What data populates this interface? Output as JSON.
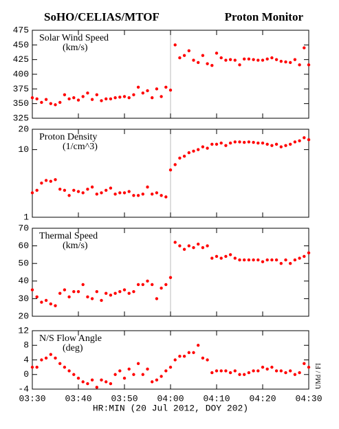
{
  "header": {
    "left": "SoHO/CELIAS/MTOF",
    "right": "Proton Monitor"
  },
  "side_note": "UMd / FI",
  "chart_data": [
    {
      "type": "scatter",
      "title": "Solar Wind Speed",
      "unit": "(km/s)",
      "color": "#ff0000",
      "x": [
        0,
        1,
        2,
        3,
        4,
        5,
        6,
        7,
        8,
        9,
        10,
        11,
        12,
        13,
        14,
        15,
        16,
        17,
        18,
        19,
        20,
        21,
        22,
        23,
        24,
        25,
        26,
        27,
        28,
        29,
        30,
        31,
        32,
        33,
        34,
        35,
        36,
        37,
        38,
        39,
        40,
        41,
        42,
        43,
        44,
        45,
        46,
        47,
        48,
        49,
        50,
        51,
        52,
        53,
        54,
        55,
        56,
        57,
        58,
        59,
        60
      ],
      "values": [
        360,
        358,
        352,
        357,
        350,
        348,
        352,
        365,
        358,
        360,
        356,
        362,
        368,
        357,
        365,
        355,
        358,
        358,
        360,
        361,
        362,
        360,
        365,
        378,
        368,
        372,
        360,
        375,
        362,
        378,
        373,
        450,
        428,
        432,
        440,
        424,
        420,
        432,
        418,
        415,
        436,
        428,
        424,
        425,
        424,
        416,
        426,
        426,
        425,
        424,
        424,
        426,
        428,
        425,
        422,
        421,
        420,
        425,
        416,
        445,
        416
      ],
      "xlim": [
        0,
        60
      ],
      "ylim": [
        325,
        475
      ],
      "yticks": [
        325,
        350,
        375,
        400,
        425,
        450,
        475
      ]
    },
    {
      "type": "scatter",
      "title": "Proton Density",
      "unit": "(1/cm^3)",
      "color": "#ff0000",
      "yscale": "log",
      "x": [
        0,
        1,
        2,
        3,
        4,
        5,
        6,
        7,
        8,
        9,
        10,
        11,
        12,
        13,
        14,
        15,
        16,
        17,
        18,
        19,
        20,
        21,
        22,
        23,
        24,
        25,
        26,
        27,
        28,
        29,
        30,
        31,
        32,
        33,
        34,
        35,
        36,
        37,
        38,
        39,
        40,
        41,
        42,
        43,
        44,
        45,
        46,
        47,
        48,
        49,
        50,
        51,
        52,
        53,
        54,
        55,
        56,
        57,
        58,
        59,
        60
      ],
      "values": [
        2.3,
        2.5,
        3.2,
        3.5,
        3.4,
        3.6,
        2.6,
        2.5,
        2.1,
        2.5,
        2.4,
        2.3,
        2.6,
        2.8,
        2.2,
        2.3,
        2.5,
        2.7,
        2.2,
        2.3,
        2.3,
        2.4,
        2.1,
        2.1,
        2.2,
        2.8,
        2.2,
        2.3,
        2.1,
        2.0,
        5,
        6,
        7.5,
        8,
        9,
        9.5,
        10,
        11,
        10.5,
        12,
        12,
        12.5,
        11.5,
        12.5,
        13,
        13,
        12.8,
        13,
        12.8,
        12.5,
        12.5,
        12,
        11.5,
        12,
        11,
        11.5,
        12,
        13,
        13.5,
        15,
        14
      ],
      "xlim": [
        0,
        60
      ],
      "ylim": [
        1,
        20
      ],
      "yticks": [
        1,
        10,
        20
      ]
    },
    {
      "type": "scatter",
      "title": "Thermal Speed",
      "unit": "(km/s)",
      "color": "#ff0000",
      "x": [
        0,
        1,
        2,
        3,
        4,
        5,
        6,
        7,
        8,
        9,
        10,
        11,
        12,
        13,
        14,
        15,
        16,
        17,
        18,
        19,
        20,
        21,
        22,
        23,
        24,
        25,
        26,
        27,
        28,
        29,
        30,
        31,
        32,
        33,
        34,
        35,
        36,
        37,
        38,
        39,
        40,
        41,
        42,
        43,
        44,
        45,
        46,
        47,
        48,
        49,
        50,
        51,
        52,
        53,
        54,
        55,
        56,
        57,
        58,
        59,
        60
      ],
      "values": [
        35,
        31,
        28,
        29,
        27,
        26,
        33,
        35,
        31,
        34,
        34,
        38,
        31,
        30,
        34,
        29,
        33,
        32,
        33,
        34,
        35,
        33,
        34,
        38,
        38,
        40,
        38,
        30,
        36,
        38,
        42,
        62,
        60,
        58,
        60,
        59,
        61,
        59,
        60,
        53,
        54,
        53,
        54,
        55,
        53,
        52,
        52,
        52,
        52,
        52,
        51,
        52,
        52,
        52,
        50,
        52,
        50,
        52,
        53,
        54,
        56
      ],
      "xlim": [
        0,
        60
      ],
      "ylim": [
        20,
        70
      ],
      "yticks": [
        20,
        30,
        40,
        50,
        60,
        70
      ]
    },
    {
      "type": "scatter",
      "title": "N/S Flow Angle",
      "unit": "(deg)",
      "color": "#ff0000",
      "x": [
        0,
        1,
        2,
        3,
        4,
        5,
        6,
        7,
        8,
        9,
        10,
        11,
        12,
        13,
        14,
        15,
        16,
        17,
        18,
        19,
        20,
        21,
        22,
        23,
        24,
        25,
        26,
        27,
        28,
        29,
        30,
        31,
        32,
        33,
        34,
        35,
        36,
        37,
        38,
        39,
        40,
        41,
        42,
        43,
        44,
        45,
        46,
        47,
        48,
        49,
        50,
        51,
        52,
        53,
        54,
        55,
        56,
        57,
        58,
        59,
        60
      ],
      "values": [
        2,
        2,
        4,
        4.5,
        5.5,
        4.5,
        3,
        2,
        1,
        0,
        -1,
        -2,
        -2.5,
        -1.5,
        -3.5,
        -1.5,
        -2,
        -2.5,
        0,
        1,
        -1,
        1.5,
        0,
        3,
        0,
        1.5,
        -2,
        -1.5,
        -0.5,
        1,
        2,
        4,
        5,
        5,
        6,
        6,
        8,
        4.5,
        4,
        0.5,
        1,
        1,
        1,
        0.5,
        1,
        0,
        0,
        0.5,
        1,
        1,
        2,
        1.5,
        2,
        1,
        1,
        0.5,
        1,
        0,
        0.5,
        3,
        2
      ],
      "xlim": [
        0,
        60
      ],
      "ylim": [
        -4,
        12
      ],
      "yticks": [
        -4,
        0,
        4,
        8,
        12
      ],
      "xlabel": "HR:MIN (20 Jul 2012, DOY 202)",
      "xticks": [
        {
          "value": 0,
          "label": "03:30"
        },
        {
          "value": 10,
          "label": "03:40"
        },
        {
          "value": 20,
          "label": "03:50"
        },
        {
          "value": 30,
          "label": "04:00"
        },
        {
          "value": 40,
          "label": "04:10"
        },
        {
          "value": 50,
          "label": "04:20"
        },
        {
          "value": 60,
          "label": "04:30"
        }
      ]
    }
  ]
}
